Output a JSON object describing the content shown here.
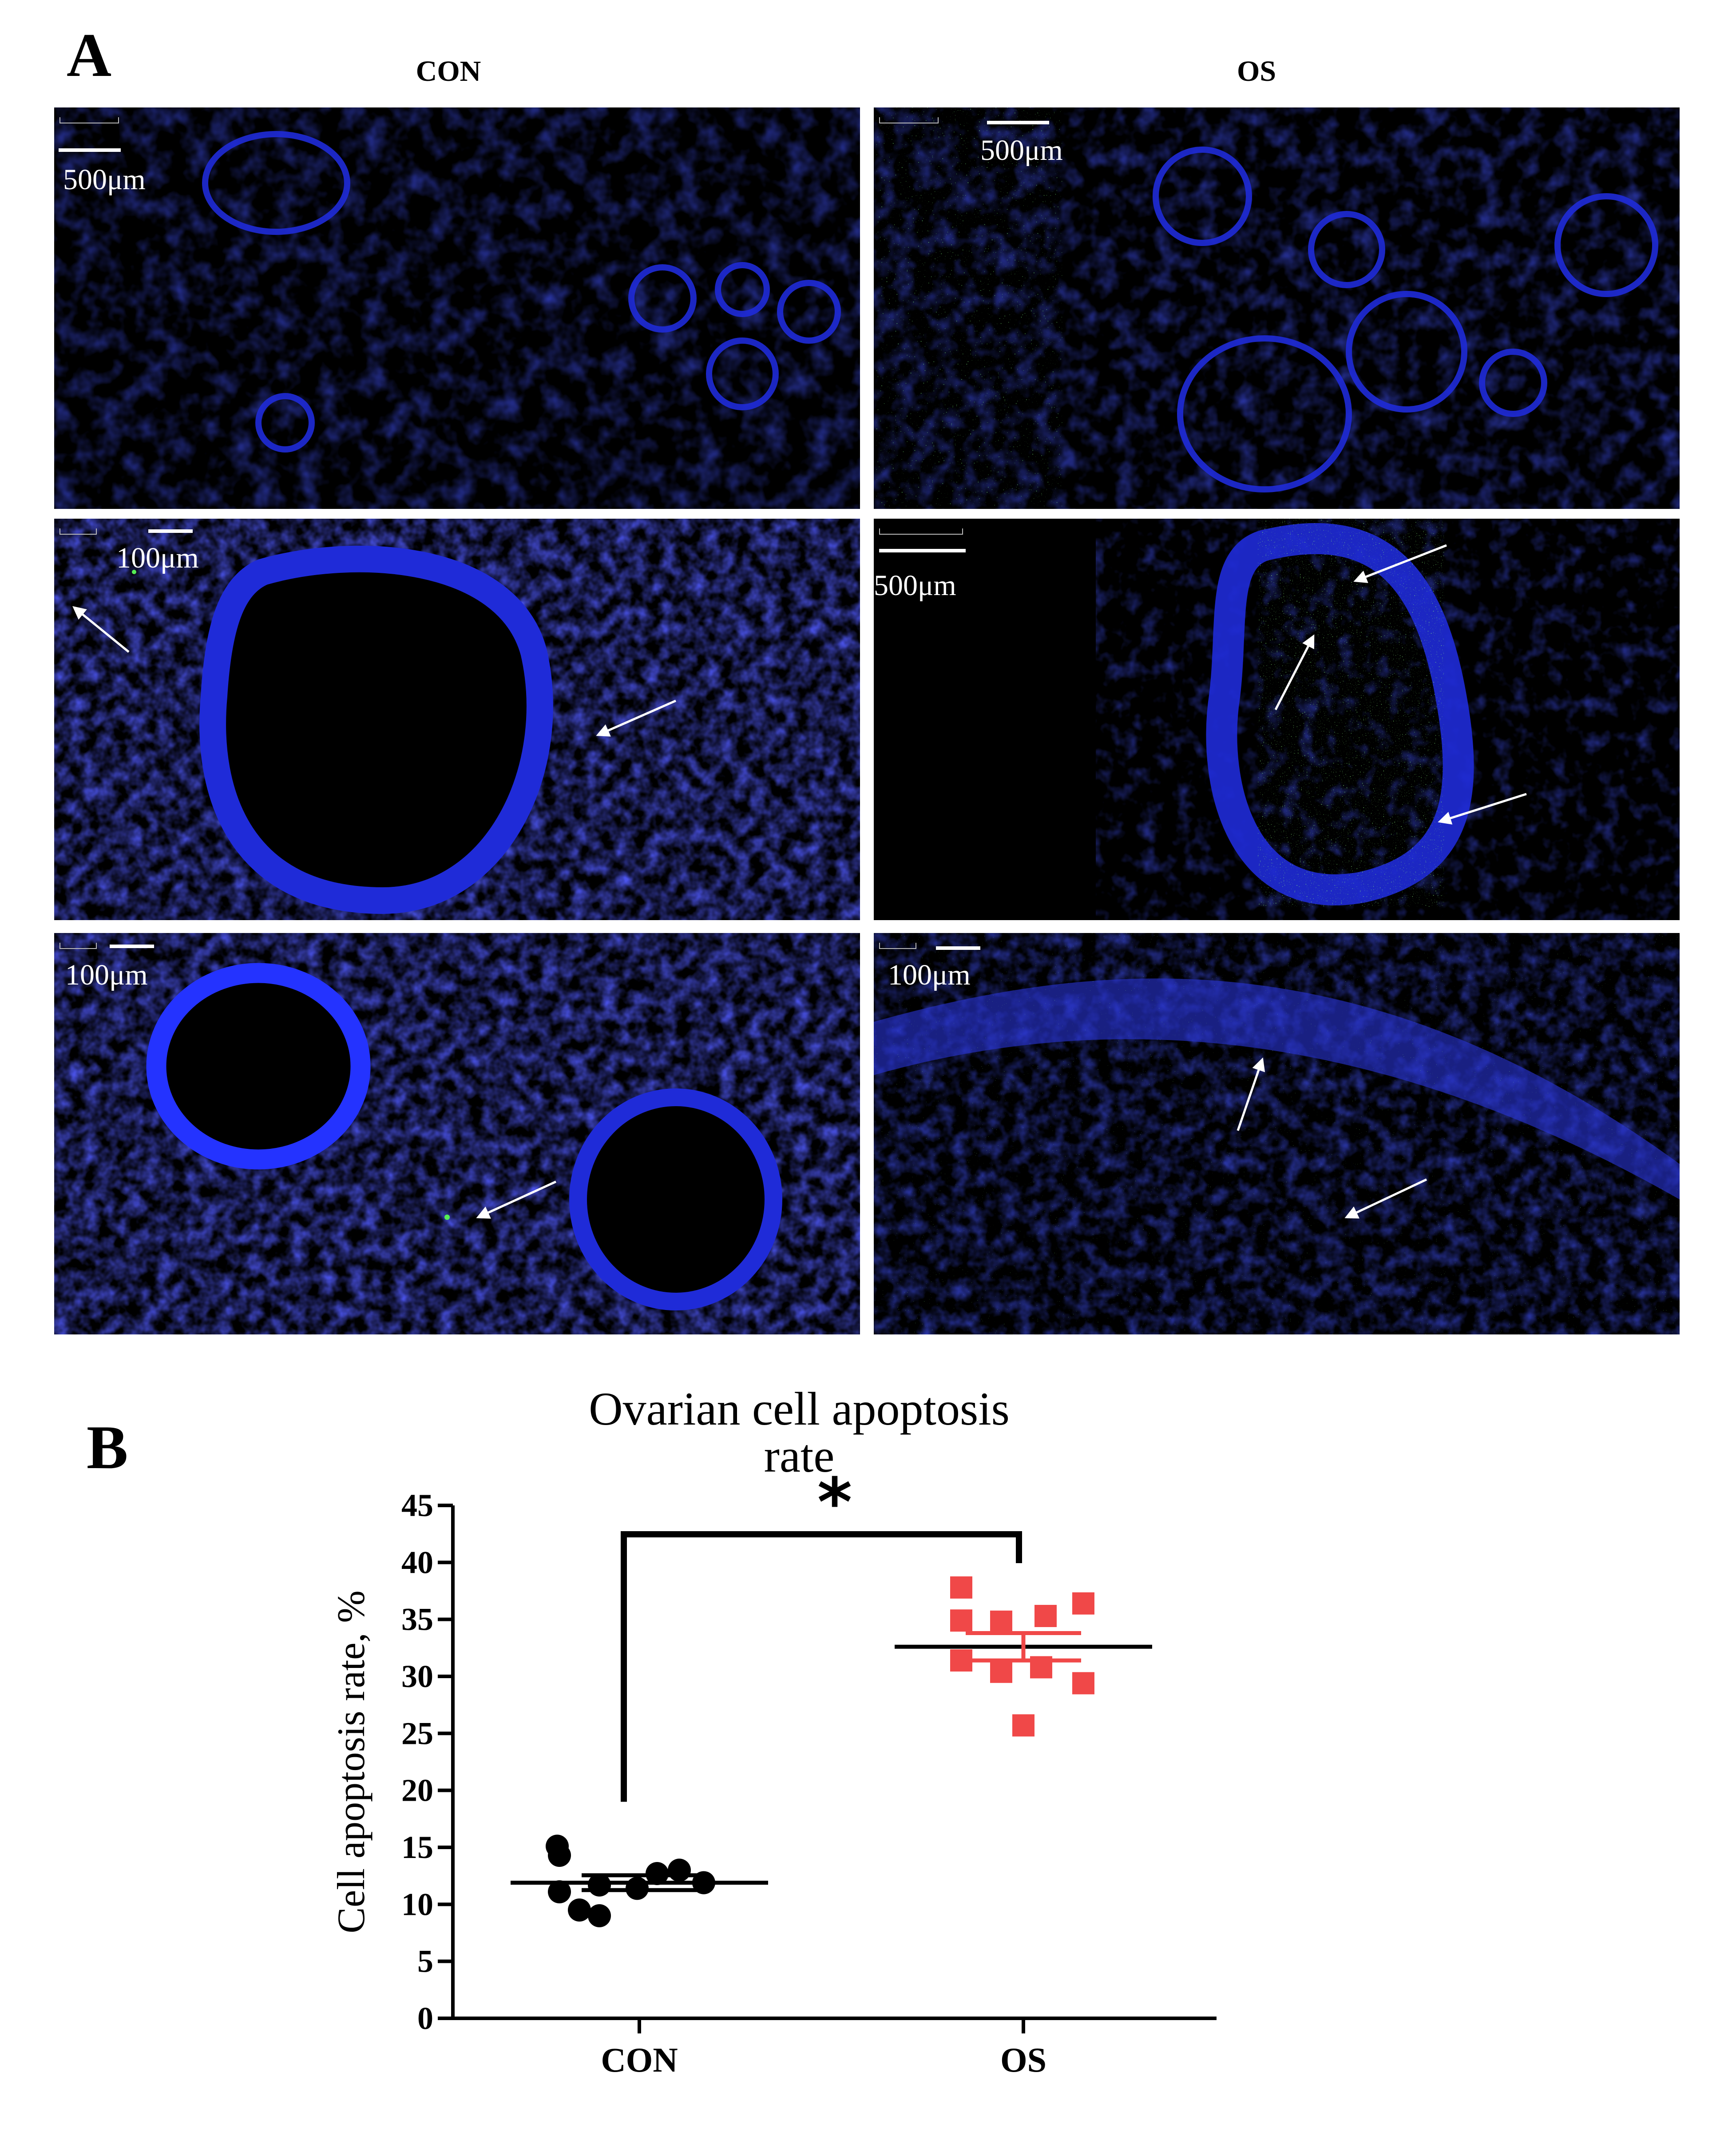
{
  "panel_a": {
    "letter": "A",
    "columns": [
      "CON",
      "OS"
    ],
    "tiles": [
      {
        "id": "con-1",
        "scale_label": "500μm",
        "tiny_label": "500 μm"
      },
      {
        "id": "os-1",
        "scale_label": "500μm",
        "tiny_label": "500 μm"
      },
      {
        "id": "con-2",
        "scale_label": "100μm",
        "tiny_label": "100 μm"
      },
      {
        "id": "os-2",
        "scale_label": "500μm",
        "tiny_label": "500 μm"
      },
      {
        "id": "con-3",
        "scale_label": "100μm",
        "tiny_label": "100 μm"
      },
      {
        "id": "os-3",
        "scale_label": "100μm",
        "tiny_label": "100 μm"
      }
    ],
    "colors": {
      "nuclei": "#1a1aff",
      "apoptotic": "#3fdc3f",
      "background": "#000000"
    }
  },
  "panel_b": {
    "letter": "B"
  },
  "chart_data": {
    "type": "scatter",
    "title": "Ovarian cell apoptosis rate",
    "ylabel": "Cell apoptosis rate, %",
    "xlabel": "",
    "categories": [
      "CON",
      "OS"
    ],
    "ylim": [
      0,
      45
    ],
    "yticks": [
      0,
      5,
      10,
      15,
      20,
      25,
      30,
      35,
      40,
      45
    ],
    "series": [
      {
        "category": "CON",
        "marker": "circle",
        "color": "#000000",
        "values": [
          14.3,
          15.1,
          11.7,
          9.0,
          11.1,
          9.5,
          11.4,
          12.7,
          13.0,
          11.9
        ],
        "mean": 11.9,
        "sem": 0.65
      },
      {
        "category": "OS",
        "marker": "square",
        "color": "#f04848",
        "values": [
          37.8,
          34.9,
          34.8,
          35.3,
          36.4,
          31.4,
          30.4,
          30.8,
          29.4,
          25.7
        ],
        "mean": 32.6,
        "sem": 1.2
      }
    ],
    "significance": {
      "label": "*",
      "between": [
        "CON",
        "OS"
      ]
    }
  }
}
